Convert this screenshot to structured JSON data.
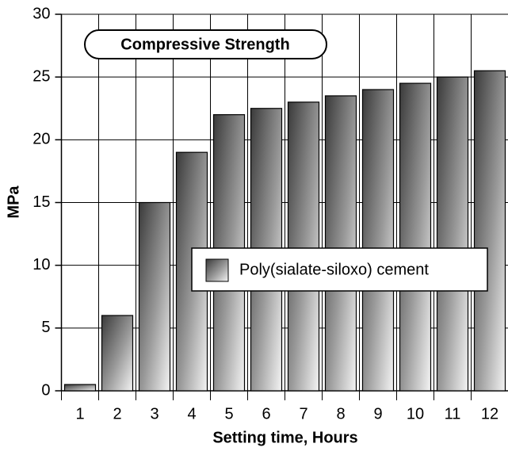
{
  "chart_data": {
    "type": "bar",
    "title": "Compressive Strength",
    "x_label": "Setting time, Hours",
    "y_label": "MPa",
    "categories": [
      "1",
      "2",
      "3",
      "4",
      "5",
      "6",
      "7",
      "8",
      "9",
      "10",
      "11",
      "12"
    ],
    "series": [
      {
        "name": "Poly(sialate-siloxo) cement",
        "values": [
          0.5,
          6,
          15,
          19,
          22,
          22.5,
          23,
          23.5,
          24,
          24.5,
          25,
          25.5
        ]
      }
    ],
    "ylim": [
      0,
      30
    ],
    "yticks": [
      0,
      5,
      10,
      15,
      20,
      25,
      30
    ],
    "grid": true
  }
}
